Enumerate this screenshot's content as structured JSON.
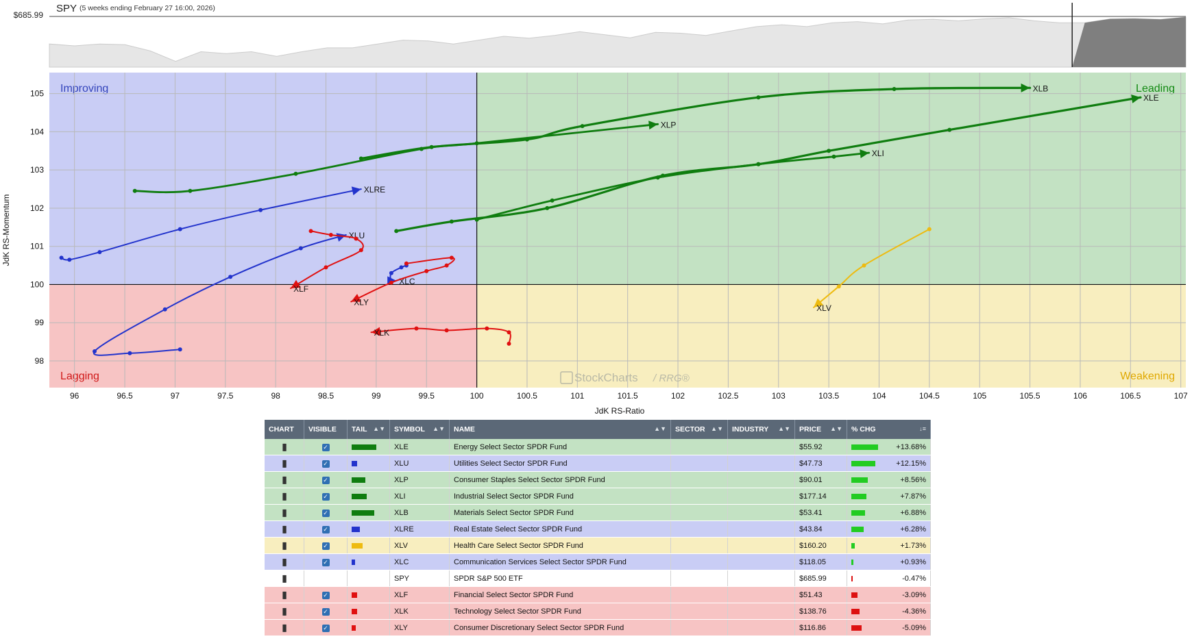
{
  "spy_header": {
    "symbol": "SPY",
    "period": "(5 weeks ending February 27 16:00, 2026)",
    "price": "$685.99"
  },
  "chart_data": [
    {
      "type": "area",
      "title": "SPY",
      "subtitle": "(5 weeks ending February 27 16:00, 2026)",
      "series": [
        {
          "name": "SPY",
          "values": [
            679.0,
            678.5,
            679.0,
            678.8,
            677.2,
            674.5,
            677.0,
            676.5,
            677.0,
            675.8,
            677.0,
            678.0,
            678.0,
            679.0,
            680.0,
            679.8,
            679.0,
            680.0,
            681.0,
            680.5,
            681.2,
            682.2,
            681.4,
            680.6,
            682.0,
            681.8,
            681.2,
            682.4,
            683.5,
            684.0,
            683.5,
            684.5,
            684.8,
            684.2,
            685.2,
            685.4,
            685.0,
            685.5,
            685.8,
            685.0,
            684.5,
            684.5,
            685.5,
            685.6,
            685.4,
            685.99
          ]
        }
      ],
      "last_label": "$685.99",
      "note_shaded_tail_fraction": 0.1
    },
    {
      "type": "scatter",
      "title": "",
      "xlabel": "JdK RS-Ratio",
      "ylabel": "JdK RS-Momentum",
      "xlim": [
        95.75,
        107.05
      ],
      "ylim": [
        97.3,
        105.55
      ],
      "xticks": [
        "96",
        "96.5",
        "97",
        "97.5",
        "98",
        "98.5",
        "99",
        "99.5",
        "100",
        "100.5",
        "101",
        "101.5",
        "102",
        "102.5",
        "103",
        "103.5",
        "104",
        "104.5",
        "105",
        "105.5",
        "106",
        "106.5",
        "107"
      ],
      "yticks": [
        "98",
        "99",
        "100",
        "101",
        "102",
        "103",
        "104",
        "105"
      ],
      "quadrants": [
        {
          "name": "Improving",
          "color": "#c9cdf5",
          "text_color": "#3344bb"
        },
        {
          "name": "Leading",
          "color": "#c3e2c3",
          "text_color": "#138a13"
        },
        {
          "name": "Lagging",
          "color": "#f7c4c4",
          "text_color": "#d01919"
        },
        {
          "name": "Weakening",
          "color": "#f8eebf",
          "text_color": "#e0a800"
        }
      ],
      "watermark": "StockCharts",
      "watermark2": "/ RRG®",
      "grid": true,
      "series": [
        {
          "name": "XLE",
          "color": "#0f7d0f",
          "width": 3.2,
          "points": [
            [
              99.2,
              101.4
            ],
            [
              99.75,
              101.65
            ],
            [
              100.7,
              102.0
            ],
            [
              101.85,
              102.85
            ],
            [
              102.8,
              103.15
            ],
            [
              103.5,
              103.5
            ],
            [
              104.7,
              104.05
            ],
            [
              106.6,
              104.9
            ]
          ]
        },
        {
          "name": "XLB",
          "color": "#0f7d0f",
          "width": 3.2,
          "points": [
            [
              98.85,
              103.3
            ],
            [
              99.55,
              103.6
            ],
            [
              100.5,
              103.8
            ],
            [
              101.05,
              104.15
            ],
            [
              102.8,
              104.9
            ],
            [
              104.15,
              105.12
            ],
            [
              105.5,
              105.15
            ]
          ]
        },
        {
          "name": "XLP",
          "color": "#0f7d0f",
          "width": 2.8,
          "points": [
            [
              96.6,
              102.45
            ],
            [
              97.15,
              102.45
            ],
            [
              98.2,
              102.9
            ],
            [
              99.45,
              103.55
            ],
            [
              100.0,
              103.7
            ],
            [
              101.8,
              104.2
            ]
          ]
        },
        {
          "name": "XLI",
          "color": "#0f7d0f",
          "width": 2.8,
          "points": [
            [
              100.0,
              101.7
            ],
            [
              100.75,
              102.2
            ],
            [
              101.8,
              102.8
            ],
            [
              102.8,
              103.15
            ],
            [
              103.55,
              103.35
            ],
            [
              103.9,
              103.45
            ]
          ]
        },
        {
          "name": "XLRE",
          "color": "#2233cc",
          "width": 2.0,
          "points": [
            [
              95.87,
              100.7
            ],
            [
              95.95,
              100.65
            ],
            [
              96.25,
              100.85
            ],
            [
              97.05,
              101.45
            ],
            [
              97.85,
              101.95
            ],
            [
              98.85,
              102.5
            ]
          ]
        },
        {
          "name": "XLU",
          "color": "#2233cc",
          "width": 2.0,
          "points": [
            [
              97.05,
              98.3
            ],
            [
              96.55,
              98.2
            ],
            [
              96.2,
              98.25
            ],
            [
              96.9,
              99.35
            ],
            [
              97.55,
              100.2
            ],
            [
              98.25,
              100.95
            ],
            [
              98.7,
              101.3
            ]
          ]
        },
        {
          "name": "XLC",
          "color": "#2233cc",
          "width": 2.0,
          "points": [
            [
              99.3,
              100.5
            ],
            [
              99.25,
              100.45
            ],
            [
              99.15,
              100.3
            ],
            [
              99.15,
              100.1
            ],
            [
              99.2,
              100.1
            ]
          ]
        },
        {
          "name": "XLF",
          "color": "#e01010",
          "width": 2.0,
          "points": [
            [
              98.35,
              101.4
            ],
            [
              98.55,
              101.3
            ],
            [
              98.8,
              101.2
            ],
            [
              98.85,
              100.9
            ],
            [
              98.5,
              100.45
            ],
            [
              98.15,
              99.9
            ]
          ]
        },
        {
          "name": "XLY",
          "color": "#e01010",
          "width": 2.0,
          "points": [
            [
              99.3,
              100.55
            ],
            [
              99.75,
              100.7
            ],
            [
              99.7,
              100.5
            ],
            [
              99.5,
              100.35
            ],
            [
              99.15,
              100.05
            ],
            [
              98.75,
              99.55
            ]
          ]
        },
        {
          "name": "XLK",
          "color": "#e01010",
          "width": 2.0,
          "points": [
            [
              100.32,
              98.45
            ],
            [
              100.32,
              98.75
            ],
            [
              100.1,
              98.85
            ],
            [
              99.7,
              98.8
            ],
            [
              99.4,
              98.85
            ],
            [
              98.95,
              98.75
            ]
          ]
        },
        {
          "name": "XLV",
          "color": "#eebb10",
          "width": 2.0,
          "points": [
            [
              104.5,
              101.45
            ],
            [
              103.85,
              100.5
            ],
            [
              103.6,
              99.95
            ],
            [
              103.35,
              99.4
            ]
          ]
        }
      ]
    }
  ],
  "table": {
    "headers": [
      "CHART",
      "VISIBLE",
      "TAIL",
      "SYMBOL",
      "NAME",
      "SECTOR",
      "INDUSTRY",
      "PRICE",
      "% CHG"
    ],
    "rows": [
      {
        "symbol": "XLE",
        "name": "Energy Select Sector SPDR Fund",
        "price": "$55.92",
        "chg": "+13.68%",
        "chg_value": 13.68,
        "visible": true,
        "tail_width": 36,
        "tail_color": "#0f7d0f",
        "row_color": "#c3e2c3",
        "bar_color": "#22cc22"
      },
      {
        "symbol": "XLU",
        "name": "Utilities Select Sector SPDR Fund",
        "price": "$47.73",
        "chg": "+12.15%",
        "chg_value": 12.15,
        "visible": true,
        "tail_width": 8,
        "tail_color": "#2233cc",
        "row_color": "#c9cdf5",
        "bar_color": "#22cc22"
      },
      {
        "symbol": "XLP",
        "name": "Consumer Staples Select Sector SPDR Fund",
        "price": "$90.01",
        "chg": "+8.56%",
        "chg_value": 8.56,
        "visible": true,
        "tail_width": 20,
        "tail_color": "#0f7d0f",
        "row_color": "#c3e2c3",
        "bar_color": "#22cc22"
      },
      {
        "symbol": "XLI",
        "name": "Industrial Select Sector SPDR Fund",
        "price": "$177.14",
        "chg": "+7.87%",
        "chg_value": 7.87,
        "visible": true,
        "tail_width": 22,
        "tail_color": "#0f7d0f",
        "row_color": "#c3e2c3",
        "bar_color": "#22cc22"
      },
      {
        "symbol": "XLB",
        "name": "Materials Select Sector SPDR Fund",
        "price": "$53.41",
        "chg": "+6.88%",
        "chg_value": 6.88,
        "visible": true,
        "tail_width": 33,
        "tail_color": "#0f7d0f",
        "row_color": "#c3e2c3",
        "bar_color": "#22cc22"
      },
      {
        "symbol": "XLRE",
        "name": "Real Estate Select Sector SPDR Fund",
        "price": "$43.84",
        "chg": "+6.28%",
        "chg_value": 6.28,
        "visible": true,
        "tail_width": 12,
        "tail_color": "#2233cc",
        "row_color": "#c9cdf5",
        "bar_color": "#22cc22"
      },
      {
        "symbol": "XLV",
        "name": "Health Care Select Sector SPDR Fund",
        "price": "$160.20",
        "chg": "+1.73%",
        "chg_value": 1.73,
        "visible": true,
        "tail_width": 16,
        "tail_color": "#eebb10",
        "row_color": "#f8eebf",
        "bar_color": "#22cc22"
      },
      {
        "symbol": "XLC",
        "name": "Communication Services Select Sector SPDR Fund",
        "price": "$118.05",
        "chg": "+0.93%",
        "chg_value": 0.93,
        "visible": true,
        "tail_width": 5,
        "tail_color": "#2233cc",
        "row_color": "#c9cdf5",
        "bar_color": "#22cc22"
      },
      {
        "symbol": "SPY",
        "name": "SPDR S&P 500 ETF",
        "price": "$685.99",
        "chg": "-0.47%",
        "chg_value": -0.47,
        "visible": false,
        "tail_width": 0,
        "tail_color": "#ffffff",
        "row_color": "#ffffff",
        "bar_color": "#dd1111"
      },
      {
        "symbol": "XLF",
        "name": "Financial Select Sector SPDR Fund",
        "price": "$51.43",
        "chg": "-3.09%",
        "chg_value": -3.09,
        "visible": true,
        "tail_width": 8,
        "tail_color": "#e01010",
        "row_color": "#f7c4c4",
        "bar_color": "#dd1111"
      },
      {
        "symbol": "XLK",
        "name": "Technology Select Sector SPDR Fund",
        "price": "$138.76",
        "chg": "-4.36%",
        "chg_value": -4.36,
        "visible": true,
        "tail_width": 8,
        "tail_color": "#e01010",
        "row_color": "#f7c4c4",
        "bar_color": "#dd1111"
      },
      {
        "symbol": "XLY",
        "name": "Consumer Discretionary Select Sector SPDR Fund",
        "price": "$116.86",
        "chg": "-5.09%",
        "chg_value": -5.09,
        "visible": true,
        "tail_width": 6,
        "tail_color": "#e01010",
        "row_color": "#f7c4c4",
        "bar_color": "#dd1111"
      }
    ]
  }
}
